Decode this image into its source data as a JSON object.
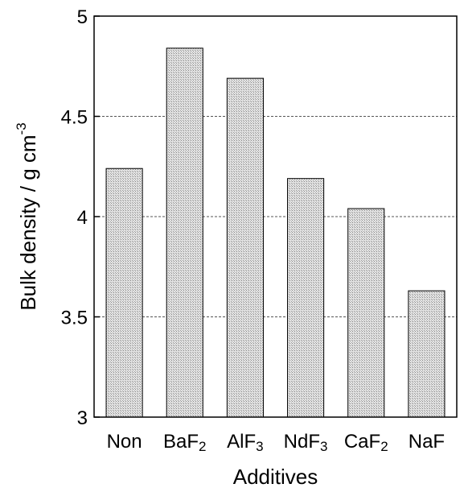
{
  "chart_data": {
    "type": "bar",
    "categories": [
      {
        "base": "Non",
        "sub": ""
      },
      {
        "base": "BaF",
        "sub": "2"
      },
      {
        "base": "AlF",
        "sub": "3"
      },
      {
        "base": "NdF",
        "sub": "3"
      },
      {
        "base": "CaF",
        "sub": "2"
      },
      {
        "base": "NaF",
        "sub": ""
      }
    ],
    "values": [
      4.24,
      4.84,
      4.69,
      4.19,
      4.04,
      3.63
    ],
    "xlabel": "Additives",
    "ylabel": {
      "text": "Bulk density / g cm",
      "sup": "-3"
    },
    "ylim": [
      3,
      5
    ],
    "yticks": [
      {
        "value": 3,
        "label": "3"
      },
      {
        "value": 3.5,
        "label": "3.5"
      },
      {
        "value": 4,
        "label": "4"
      },
      {
        "value": 4.5,
        "label": "4.5"
      },
      {
        "value": 5,
        "label": "5"
      }
    ],
    "grid": "horizontal dashed",
    "bar_fill": "#d4d4d4",
    "bar_edge": "#000000"
  }
}
